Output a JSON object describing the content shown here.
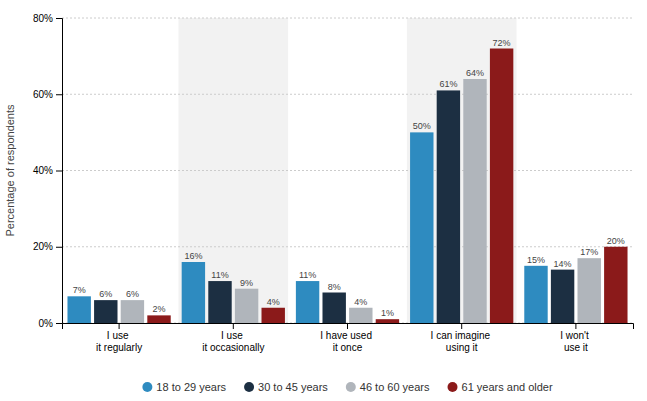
{
  "chart_data": {
    "type": "bar",
    "categories": [
      "I use it regularly",
      "I use it occasionally",
      "I have used it once",
      "I can imagine using it",
      "I won't use it"
    ],
    "series": [
      {
        "name": "18 to 29 years",
        "color": "#2e8bc0",
        "values": [
          7,
          16,
          11,
          50,
          15
        ],
        "value_labels": [
          "7%",
          "16%",
          "11%",
          "50%",
          "15%"
        ]
      },
      {
        "name": "30 to 45 years",
        "color": "#1c2f42",
        "values": [
          6,
          11,
          8,
          61,
          14
        ],
        "value_labels": [
          "6%",
          "11%",
          "8%",
          "61%",
          "14%"
        ]
      },
      {
        "name": "46 to 60 years",
        "color": "#b0b5bb",
        "values": [
          6,
          9,
          4,
          64,
          17
        ],
        "value_labels": [
          "6%",
          "9%",
          "4%",
          "64%",
          "17%"
        ]
      },
      {
        "name": "61 years and older",
        "color": "#8b1a1a",
        "values": [
          2,
          4,
          1,
          72,
          20
        ],
        "value_labels": [
          "2%",
          "4%",
          "1%",
          "72%",
          "20%"
        ]
      }
    ],
    "ylabel": "Percentage of respondents",
    "ylim": [
      0,
      80
    ],
    "yticks": [
      {
        "value": 0,
        "label": "0%"
      },
      {
        "value": 20,
        "label": "20%"
      },
      {
        "value": 40,
        "label": "40%"
      },
      {
        "value": 60,
        "label": "60%"
      },
      {
        "value": 80,
        "label": "80%"
      }
    ],
    "grid": true,
    "data_labels": true,
    "legend": "bottom"
  }
}
